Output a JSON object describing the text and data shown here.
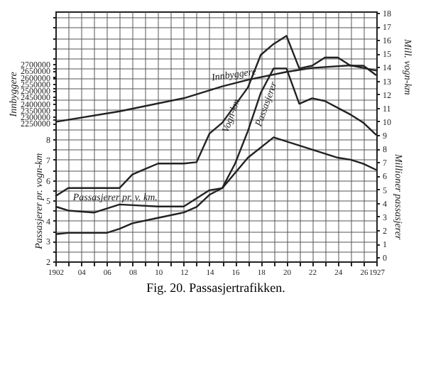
{
  "chart_data": {
    "type": "line",
    "title": "Fig. 20. Passasjertrafikken.",
    "annotations": [
      "Mill. vogn-km"
    ],
    "xlim": [
      1902,
      1927
    ],
    "xticks": [
      1902,
      {
        "value": 1903,
        "label": null
      },
      {
        "value": 1904,
        "label": "04"
      },
      {
        "value": 1905,
        "label": null
      },
      {
        "value": 1906,
        "label": "06"
      },
      {
        "value": 1907,
        "label": null
      },
      {
        "value": 1908,
        "label": "08"
      },
      {
        "value": 1909,
        "label": null
      },
      {
        "value": 1910,
        "label": "10"
      },
      {
        "value": 1911,
        "label": null
      },
      {
        "value": 1912,
        "label": "12"
      },
      {
        "value": 1913,
        "label": null
      },
      {
        "value": 1914,
        "label": "14"
      },
      {
        "value": 1915,
        "label": null
      },
      {
        "value": 1916,
        "label": "16"
      },
      {
        "value": 1917,
        "label": null
      },
      {
        "value": 1918,
        "label": "18"
      },
      {
        "value": 1919,
        "label": null
      },
      {
        "value": 1920,
        "label": "20"
      },
      {
        "value": 1921,
        "label": null
      },
      {
        "value": 1922,
        "label": "22"
      },
      {
        "value": 1923,
        "label": null
      },
      {
        "value": 1924,
        "label": "24"
      },
      {
        "value": 1925,
        "label": null
      },
      {
        "value": 1926,
        "label": "26"
      },
      1927
    ],
    "ylabel": "Passasjerer pr. vogn-km",
    "ylim": [
      2,
      14.3
    ],
    "yticks": [
      2,
      {
        "value": 2.5,
        "label": null
      },
      3,
      {
        "value": 3.5,
        "label": null
      },
      4,
      {
        "value": 4.5,
        "label": null
      },
      5,
      {
        "value": 5.5,
        "label": null
      },
      6,
      {
        "value": 6.5,
        "label": null
      },
      7,
      {
        "value": 7.5,
        "label": null
      },
      8,
      {
        "value": 8.5,
        "label": null
      },
      {
        "value": 9,
        "label": null
      },
      {
        "value": 9.5,
        "label": null
      },
      {
        "value": 10,
        "label": null
      },
      {
        "value": 10.5,
        "label": null
      },
      {
        "value": 11,
        "label": null
      },
      {
        "value": 11.5,
        "label": null
      },
      {
        "value": 12,
        "label": null
      },
      {
        "value": 12.5,
        "label": null
      },
      {
        "value": 13,
        "label": null
      },
      {
        "value": 13.5,
        "label": null
      },
      {
        "value": 14,
        "label": null
      }
    ],
    "y2label": "Millioner passasjerer",
    "y2lim": [
      -0.3,
      18.1
    ],
    "y2ticks": [
      0,
      1,
      2,
      3,
      4,
      5,
      6,
      7,
      8,
      9,
      10,
      11,
      12,
      13,
      14,
      15,
      16,
      17,
      18
    ],
    "y3label": "Innbyggere",
    "y3lim": [
      1200000,
      3100000
    ],
    "y3ticks": [
      2250000,
      2300000,
      2350000,
      2400000,
      2450000,
      2500000,
      2550000,
      2600000,
      2650000,
      2700000
    ],
    "grid": true,
    "legend": false,
    "marker": "none",
    "line_style": "solid",
    "series": [
      {
        "name": "Innbyggere",
        "color": "#222222",
        "axis": "y3",
        "x": [
          1902,
          1907,
          1912,
          1915,
          1917,
          1920,
          1922,
          1925,
          1927
        ],
        "values": [
          2260000,
          2340000,
          2440000,
          2530000,
          2580000,
          2640000,
          2670000,
          2690000,
          2650000
        ]
      },
      {
        "name": "Vogn-km",
        "color": "#222222",
        "axis": "y2",
        "x": [
          1902,
          1903,
          1907,
          1908,
          1909,
          1910,
          1912,
          1913,
          1914,
          1915,
          1917,
          1918,
          1919,
          1920,
          1921,
          1922,
          1923,
          1924,
          1925,
          1926,
          1927
        ],
        "values": [
          4.5,
          5.1,
          5.1,
          6.1,
          6.5,
          6.9,
          6.9,
          7.0,
          9.1,
          9.9,
          12.5,
          14.9,
          15.7,
          16.3,
          13.9,
          14.1,
          14.7,
          14.7,
          14.1,
          14.1,
          13.4
        ]
      },
      {
        "name": "Passasjerer",
        "color": "#222222",
        "axis": "y2",
        "x": [
          1902,
          1903,
          1906,
          1907,
          1908,
          1910,
          1912,
          1913,
          1914,
          1915,
          1916,
          1917,
          1918,
          1919,
          1920,
          1921,
          1922,
          1923,
          1924,
          1925,
          1926,
          1927
        ],
        "values": [
          1.7,
          1.8,
          1.8,
          2.1,
          2.5,
          2.9,
          3.3,
          3.7,
          4.6,
          5.1,
          6.9,
          9.3,
          12.1,
          13.9,
          13.9,
          11.3,
          11.7,
          11.5,
          11.0,
          10.5,
          9.9,
          9.0
        ]
      },
      {
        "name": "Passasjerer pr. v. km.",
        "color": "#222222",
        "axis": "y",
        "x": [
          1902,
          1903,
          1905,
          1907,
          1910,
          1912,
          1913,
          1914,
          1915,
          1917,
          1919,
          1920,
          1921,
          1922,
          1923,
          1924,
          1925,
          1926,
          1927
        ],
        "values": [
          4.7,
          4.5,
          4.4,
          4.8,
          4.7,
          4.7,
          5.1,
          5.5,
          5.6,
          7.1,
          8.1,
          7.9,
          7.7,
          7.5,
          7.3,
          7.1,
          7.0,
          6.8,
          6.5
        ]
      }
    ]
  }
}
